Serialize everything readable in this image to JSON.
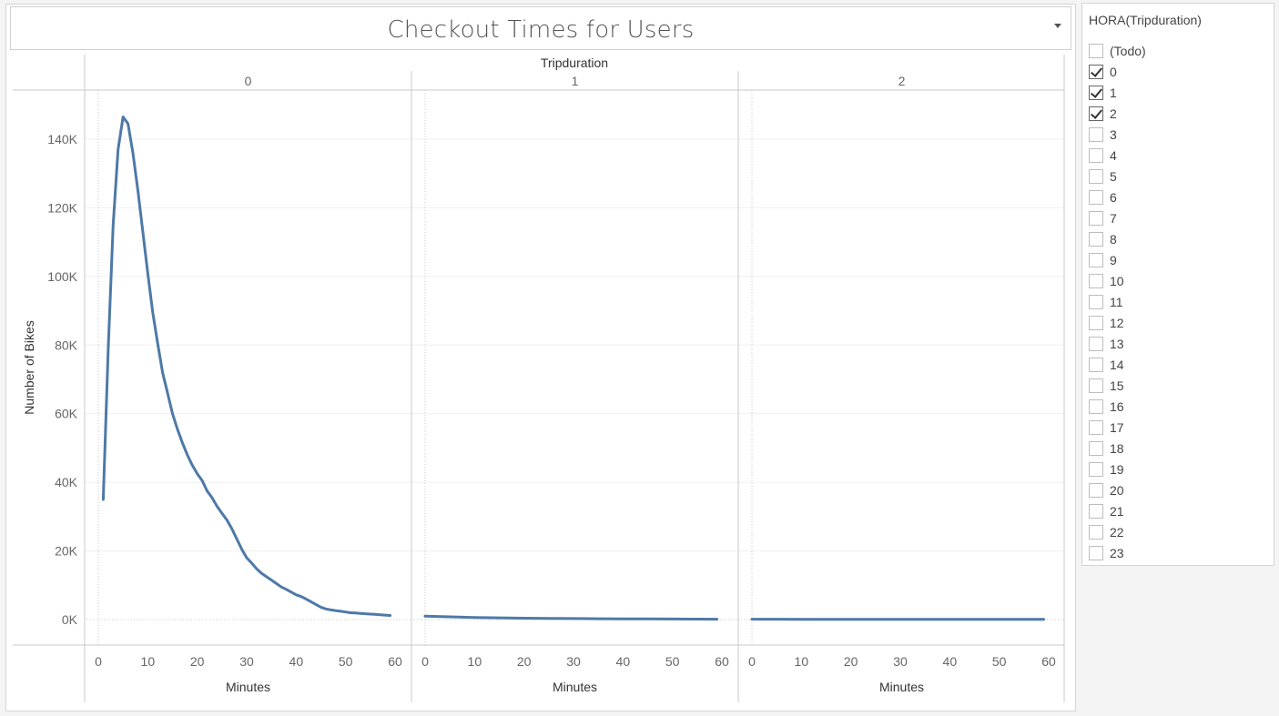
{
  "title": "Checkout Times for Users",
  "filter": {
    "title": "HORA(Tripduration)",
    "items": [
      {
        "label": "(Todo)",
        "checked": false
      },
      {
        "label": "0",
        "checked": true
      },
      {
        "label": "1",
        "checked": true
      },
      {
        "label": "2",
        "checked": true
      },
      {
        "label": "3",
        "checked": false
      },
      {
        "label": "4",
        "checked": false
      },
      {
        "label": "5",
        "checked": false
      },
      {
        "label": "6",
        "checked": false
      },
      {
        "label": "7",
        "checked": false
      },
      {
        "label": "8",
        "checked": false
      },
      {
        "label": "9",
        "checked": false
      },
      {
        "label": "10",
        "checked": false
      },
      {
        "label": "11",
        "checked": false
      },
      {
        "label": "12",
        "checked": false
      },
      {
        "label": "13",
        "checked": false
      },
      {
        "label": "14",
        "checked": false
      },
      {
        "label": "15",
        "checked": false
      },
      {
        "label": "16",
        "checked": false
      },
      {
        "label": "17",
        "checked": false
      },
      {
        "label": "18",
        "checked": false
      },
      {
        "label": "19",
        "checked": false
      },
      {
        "label": "20",
        "checked": false
      },
      {
        "label": "21",
        "checked": false
      },
      {
        "label": "22",
        "checked": false
      },
      {
        "label": "23",
        "checked": false
      }
    ]
  },
  "chart_data": {
    "type": "line",
    "title": "Checkout Times for Users",
    "facet_label": "Tripduration",
    "xlabel": "Minutes",
    "ylabel": "Number of Bikes",
    "xlim": [
      0,
      60
    ],
    "ylim": [
      0,
      150000
    ],
    "xticks": [
      0,
      10,
      20,
      30,
      40,
      50,
      60
    ],
    "yticks": [
      0,
      20000,
      40000,
      60000,
      80000,
      100000,
      120000,
      140000
    ],
    "ytick_labels": [
      "0K",
      "20K",
      "40K",
      "60K",
      "80K",
      "100K",
      "120K",
      "140K"
    ],
    "line_color": "#4e79a7",
    "grid": true,
    "panels": [
      {
        "label": "0",
        "x": [
          1,
          2,
          3,
          4,
          5,
          6,
          7,
          8,
          9,
          10,
          11,
          12,
          13,
          14,
          15,
          16,
          17,
          18,
          19,
          20,
          21,
          22,
          23,
          24,
          25,
          26,
          27,
          28,
          29,
          30,
          31,
          32,
          33,
          34,
          35,
          36,
          37,
          38,
          39,
          40,
          41,
          42,
          43,
          44,
          45,
          46,
          47,
          48,
          49,
          50,
          51,
          52,
          53,
          54,
          55,
          56,
          57,
          58,
          59
        ],
        "y": [
          35000,
          79000,
          115000,
          137000,
          146500,
          144500,
          136000,
          125000,
          113000,
          101000,
          89500,
          80500,
          72000,
          66000,
          60000,
          55500,
          51500,
          48000,
          45000,
          42500,
          40500,
          37500,
          35500,
          33000,
          31000,
          29000,
          26500,
          23500,
          20500,
          18000,
          16500,
          14800,
          13500,
          12500,
          11500,
          10500,
          9500,
          8800,
          8000,
          7200,
          6700,
          6000,
          5200,
          4400,
          3600,
          3100,
          2800,
          2600,
          2400,
          2200,
          2000,
          1900,
          1800,
          1700,
          1600,
          1500,
          1400,
          1300,
          1200
        ]
      },
      {
        "label": "1",
        "x": [
          0,
          5,
          10,
          15,
          20,
          25,
          30,
          35,
          40,
          45,
          50,
          55,
          59
        ],
        "y": [
          1000,
          800,
          600,
          500,
          400,
          350,
          300,
          250,
          200,
          180,
          150,
          130,
          100
        ]
      },
      {
        "label": "2",
        "x": [
          0,
          5,
          10,
          15,
          20,
          25,
          30,
          35,
          40,
          45,
          50,
          55,
          59
        ],
        "y": [
          100,
          100,
          90,
          90,
          80,
          80,
          70,
          70,
          60,
          60,
          50,
          50,
          50
        ]
      }
    ]
  }
}
